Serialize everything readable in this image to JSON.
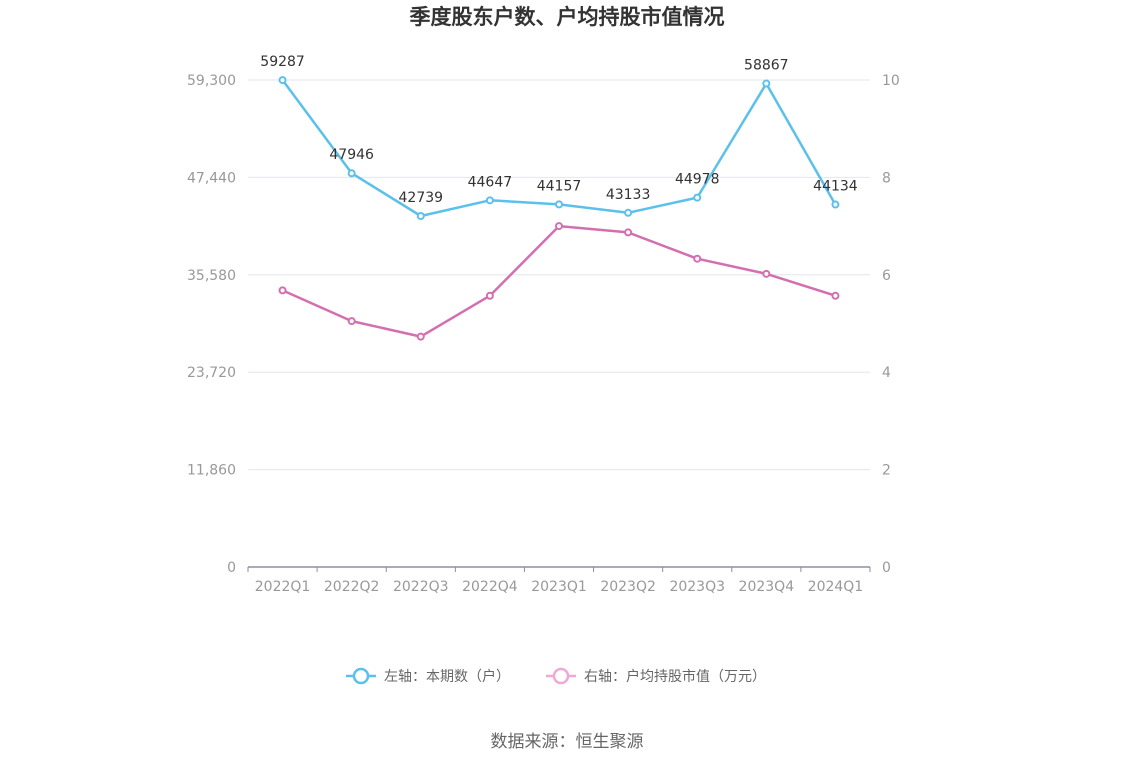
{
  "chart_data": {
    "type": "line",
    "title": "季度股东户数、户均持股市值情况",
    "categories": [
      "2022Q1",
      "2022Q2",
      "2022Q3",
      "2022Q4",
      "2023Q1",
      "2023Q2",
      "2023Q3",
      "2023Q4",
      "2024Q1"
    ],
    "y_left": {
      "ticks": [
        "0",
        "11,860",
        "23,720",
        "35,580",
        "47,440",
        "59,300"
      ],
      "min": 0,
      "max": 59300
    },
    "y_right": {
      "ticks": [
        "0",
        "2",
        "4",
        "6",
        "8",
        "10"
      ],
      "min": 0,
      "max": 10
    },
    "series": [
      {
        "name": "左轴：本期数（户）",
        "axis": "left",
        "color": "#5bc0eb",
        "values": [
          59287,
          47946,
          42739,
          44647,
          44157,
          43133,
          44978,
          58867,
          44134
        ],
        "labels": [
          "59287",
          "47946",
          "42739",
          "44647",
          "44157",
          "43133",
          "44978",
          "58867",
          "44134"
        ]
      },
      {
        "name": "右轴：户均持股市值（万元）",
        "axis": "right",
        "color": "#d36fb0",
        "legend_color": "#f0a9d2",
        "values": [
          5.68,
          5.05,
          4.73,
          5.57,
          7.0,
          6.87,
          6.33,
          6.02,
          5.57
        ]
      }
    ],
    "grid": true,
    "legend_position": "bottom"
  },
  "source": "数据来源：恒生聚源"
}
